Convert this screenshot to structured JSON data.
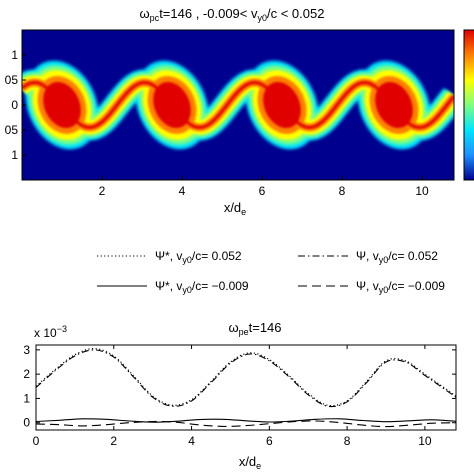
{
  "chart_data": [
    {
      "type": "heatmap",
      "title_main": "ω",
      "title_sub": "pc",
      "title_rest": "t=146 , -0.009< v",
      "title_sub2": "y0",
      "title_end": "/c <  0.052",
      "xlabel_main": "x/d",
      "xlabel_sub": "e",
      "xlim": [
        0,
        10.8
      ],
      "ylim": [
        -0.15,
        0.15
      ],
      "x_ticks": [
        "2",
        "4",
        "6",
        "8",
        "10"
      ],
      "y_ticks": [
        "1",
        "05",
        "0",
        "05",
        "1"
      ],
      "colormap": [
        "#00008f",
        "#1e90ff",
        "#00e5ff",
        "#7fff7f",
        "#ffff00",
        "#ff8000",
        "#e00000"
      ],
      "band": {
        "centers_x": [
          1.0,
          3.75,
          6.5,
          9.3
        ],
        "wavelength": 2.75,
        "amplitude": 0.045
      }
    },
    {
      "type": "line",
      "title_main": "ω",
      "title_sub": "pe",
      "title_rest": "t=146",
      "multiplier_base": "x 10",
      "multiplier_exp": "−3",
      "xlabel_main": "x/d",
      "xlabel_sub": "e",
      "xlim": [
        0,
        10.8
      ],
      "ylim": [
        -0.3,
        3.2
      ],
      "x_ticks": [
        0,
        2,
        4,
        6,
        8,
        10
      ],
      "y_ticks": [
        0,
        1,
        2,
        3
      ],
      "legend": [
        {
          "sym": "Ψ*, v",
          "sub": "y0",
          "rest": "/c= 0.052",
          "dash": "1.2,2.4"
        },
        {
          "sym": "Ψ, v",
          "sub": "y0",
          "rest": "/c= 0.052",
          "dash": "7,3,1.5,3"
        },
        {
          "sym": "Ψ*, v",
          "sub": "y0",
          "rest": "/c= −0.009",
          "dash": ""
        },
        {
          "sym": "Ψ, v",
          "sub": "y0",
          "rest": "/c= −0.009",
          "dash": "9,5"
        }
      ],
      "series": [
        {
          "dash": "1.2,2.4",
          "x": [
            0,
            0.5,
            1.0,
            1.5,
            2.0,
            2.5,
            3.0,
            3.5,
            4.0,
            4.5,
            5.0,
            5.5,
            6.0,
            6.5,
            7.0,
            7.5,
            8.0,
            8.5,
            9.0,
            9.5,
            10.0,
            10.8
          ],
          "y": [
            1.5,
            2.2,
            2.8,
            3.05,
            2.75,
            1.95,
            1.1,
            0.72,
            0.95,
            1.7,
            2.5,
            2.88,
            2.6,
            1.95,
            1.2,
            0.72,
            0.9,
            1.7,
            2.55,
            2.55,
            2.0,
            1.1
          ]
        },
        {
          "dash": "7,3,1.5,3",
          "x": [
            0,
            0.5,
            1.0,
            1.5,
            2.0,
            2.5,
            3.0,
            3.5,
            4.0,
            4.5,
            5.0,
            5.5,
            6.0,
            6.5,
            7.0,
            7.5,
            8.0,
            8.5,
            9.0,
            9.5,
            10.0,
            10.8
          ],
          "y": [
            1.45,
            2.15,
            2.75,
            3.0,
            2.7,
            1.9,
            1.05,
            0.68,
            0.9,
            1.65,
            2.45,
            2.83,
            2.55,
            1.9,
            1.15,
            0.68,
            0.86,
            1.65,
            2.5,
            2.5,
            1.95,
            1.05
          ]
        },
        {
          "dash": "",
          "x": [
            0,
            0.6,
            1.2,
            1.8,
            2.4,
            3.0,
            3.6,
            4.2,
            4.8,
            5.4,
            6.0,
            6.6,
            7.2,
            7.8,
            8.4,
            9.0,
            9.6,
            10.2,
            10.8
          ],
          "y": [
            0.05,
            0.1,
            0.16,
            0.14,
            0.07,
            0.02,
            0.06,
            0.13,
            0.14,
            0.08,
            0.03,
            0.07,
            0.14,
            0.16,
            0.09,
            0.04,
            0.08,
            0.12,
            0.06
          ]
        },
        {
          "dash": "9,5",
          "x": [
            0,
            0.6,
            1.2,
            1.8,
            2.4,
            3.0,
            3.6,
            4.2,
            4.8,
            5.4,
            6.0,
            6.6,
            7.2,
            7.8,
            8.4,
            9.0,
            9.6,
            10.2,
            10.8
          ],
          "y": [
            -0.05,
            -0.08,
            -0.13,
            -0.08,
            0.0,
            0.05,
            0.02,
            -0.09,
            -0.15,
            -0.12,
            -0.04,
            0.04,
            0.07,
            0.01,
            -0.1,
            -0.16,
            -0.1,
            -0.02,
            0.0
          ]
        }
      ]
    }
  ]
}
